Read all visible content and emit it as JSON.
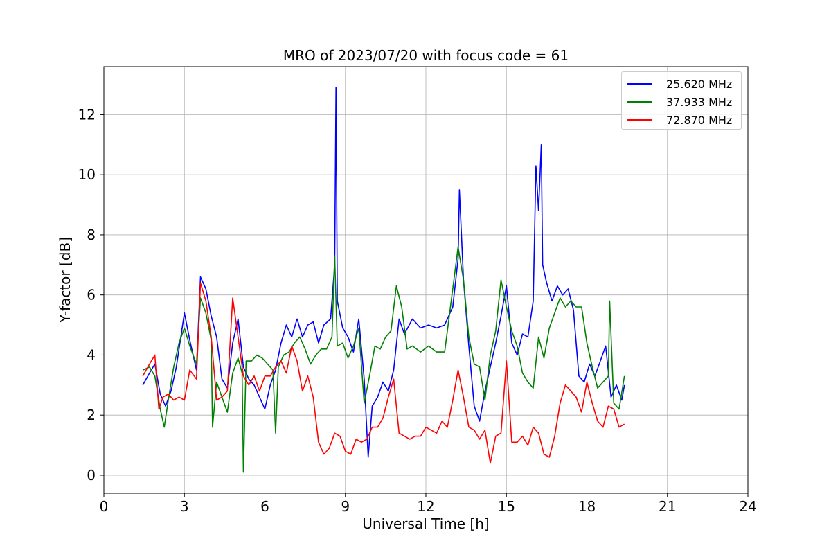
{
  "chart_data": {
    "type": "line",
    "title": "MRO of 2023/07/20 with focus code = 61",
    "xlabel": "Universal Time [h]",
    "ylabel": "Y-factor [dB]",
    "xlim": [
      0,
      24
    ],
    "ylim": [
      -0.6,
      13.6
    ],
    "xticks": [
      0,
      3,
      6,
      9,
      12,
      15,
      18,
      21,
      24
    ],
    "yticks": [
      0,
      2,
      4,
      6,
      8,
      10,
      12
    ],
    "grid": true,
    "legend_position": "top-right",
    "series": [
      {
        "name": "25.620 MHz",
        "color": "#0000ff",
        "x": [
          1.45,
          1.7,
          1.9,
          2.1,
          2.3,
          2.5,
          2.7,
          2.9,
          3.0,
          3.2,
          3.45,
          3.6,
          3.8,
          4.0,
          4.2,
          4.4,
          4.6,
          4.8,
          5.0,
          5.2,
          5.4,
          5.6,
          5.8,
          6.0,
          6.2,
          6.4,
          6.6,
          6.8,
          7.0,
          7.2,
          7.4,
          7.6,
          7.8,
          8.0,
          8.2,
          8.45,
          8.6,
          8.65,
          8.7,
          8.9,
          9.1,
          9.3,
          9.5,
          9.7,
          9.85,
          10.0,
          10.2,
          10.4,
          10.6,
          10.8,
          11.0,
          11.2,
          11.5,
          11.8,
          12.1,
          12.4,
          12.7,
          13.0,
          13.2,
          13.25,
          13.4,
          13.6,
          13.8,
          14.0,
          14.2,
          14.4,
          14.6,
          14.8,
          15.0,
          15.2,
          15.4,
          15.6,
          15.8,
          16.0,
          16.1,
          16.2,
          16.3,
          16.35,
          16.5,
          16.7,
          16.9,
          17.1,
          17.3,
          17.5,
          17.7,
          17.9,
          18.1,
          18.3,
          18.5,
          18.7,
          18.9,
          19.1,
          19.3,
          19.4
        ],
        "y": [
          3.0,
          3.4,
          3.7,
          2.7,
          2.3,
          2.8,
          3.6,
          4.8,
          5.4,
          4.5,
          3.5,
          6.6,
          6.2,
          5.3,
          4.6,
          3.2,
          2.9,
          4.4,
          5.2,
          3.6,
          3.2,
          3.0,
          2.6,
          2.2,
          3.0,
          3.5,
          4.4,
          5.0,
          4.6,
          5.2,
          4.6,
          5.0,
          5.1,
          4.4,
          5.0,
          5.2,
          7.0,
          12.9,
          5.8,
          4.9,
          4.6,
          4.1,
          5.2,
          3.2,
          0.6,
          2.3,
          2.6,
          3.1,
          2.8,
          3.5,
          5.2,
          4.7,
          5.2,
          4.9,
          5.0,
          4.9,
          5.0,
          5.6,
          7.2,
          9.5,
          6.5,
          4.3,
          2.3,
          1.8,
          2.8,
          3.6,
          4.4,
          5.3,
          6.3,
          4.4,
          4.0,
          4.7,
          4.6,
          5.8,
          10.3,
          8.8,
          11.0,
          7.0,
          6.4,
          5.8,
          6.3,
          6.0,
          6.2,
          5.5,
          3.3,
          3.1,
          3.7,
          3.3,
          3.8,
          4.3,
          2.6,
          3.0,
          2.5,
          3.0
        ]
      },
      {
        "name": "37.933 MHz",
        "color": "#008000",
        "x": [
          1.45,
          1.7,
          1.9,
          2.1,
          2.25,
          2.4,
          2.6,
          2.8,
          3.0,
          3.2,
          3.45,
          3.6,
          3.8,
          4.0,
          4.05,
          4.2,
          4.4,
          4.6,
          4.8,
          5.0,
          5.15,
          5.2,
          5.3,
          5.5,
          5.7,
          5.9,
          6.1,
          6.3,
          6.4,
          6.5,
          6.7,
          6.9,
          7.1,
          7.3,
          7.5,
          7.7,
          7.9,
          8.1,
          8.3,
          8.5,
          8.6,
          8.7,
          8.9,
          9.1,
          9.3,
          9.5,
          9.7,
          9.9,
          10.1,
          10.3,
          10.5,
          10.7,
          10.9,
          11.1,
          11.3,
          11.5,
          11.8,
          12.1,
          12.4,
          12.7,
          13.0,
          13.2,
          13.4,
          13.6,
          13.8,
          14.0,
          14.2,
          14.4,
          14.6,
          14.8,
          15.0,
          15.2,
          15.4,
          15.6,
          15.8,
          16.0,
          16.2,
          16.4,
          16.6,
          16.8,
          17.0,
          17.2,
          17.4,
          17.6,
          17.8,
          18.0,
          18.2,
          18.4,
          18.6,
          18.8,
          18.85,
          19.0,
          19.2,
          19.4
        ],
        "y": [
          3.5,
          3.6,
          3.3,
          2.2,
          1.6,
          2.5,
          3.6,
          4.4,
          4.9,
          4.3,
          3.7,
          5.9,
          5.4,
          4.5,
          1.6,
          3.1,
          2.6,
          2.1,
          3.4,
          3.9,
          3.4,
          0.1,
          3.8,
          3.8,
          4.0,
          3.9,
          3.7,
          3.5,
          1.4,
          3.6,
          4.0,
          4.1,
          4.4,
          4.6,
          4.2,
          3.7,
          4.0,
          4.2,
          4.2,
          4.6,
          7.3,
          4.3,
          4.4,
          3.9,
          4.3,
          4.9,
          2.4,
          3.3,
          4.3,
          4.2,
          4.6,
          4.8,
          6.3,
          5.6,
          4.2,
          4.3,
          4.1,
          4.3,
          4.1,
          4.1,
          6.2,
          7.6,
          6.5,
          4.6,
          3.7,
          3.6,
          2.5,
          4.0,
          4.8,
          6.5,
          5.6,
          4.8,
          4.3,
          3.4,
          3.1,
          2.9,
          4.6,
          3.9,
          4.9,
          5.4,
          5.9,
          5.6,
          5.8,
          5.6,
          5.6,
          4.4,
          3.6,
          2.9,
          3.1,
          3.3,
          5.8,
          2.4,
          2.2,
          3.3
        ]
      },
      {
        "name": "72.870 MHz",
        "color": "#ff0000",
        "x": [
          1.45,
          1.7,
          1.9,
          2.05,
          2.2,
          2.4,
          2.6,
          2.8,
          3.0,
          3.2,
          3.45,
          3.6,
          3.8,
          4.0,
          4.2,
          4.4,
          4.6,
          4.8,
          5.0,
          5.2,
          5.4,
          5.6,
          5.8,
          6.0,
          6.2,
          6.4,
          6.6,
          6.8,
          7.0,
          7.2,
          7.4,
          7.6,
          7.8,
          8.0,
          8.2,
          8.4,
          8.6,
          8.8,
          9.0,
          9.2,
          9.4,
          9.6,
          9.8,
          10.0,
          10.2,
          10.4,
          10.6,
          10.8,
          11.0,
          11.2,
          11.4,
          11.6,
          11.8,
          12.0,
          12.2,
          12.4,
          12.6,
          12.8,
          13.0,
          13.2,
          13.4,
          13.6,
          13.8,
          14.0,
          14.2,
          14.4,
          14.6,
          14.8,
          15.0,
          15.2,
          15.4,
          15.6,
          15.8,
          16.0,
          16.2,
          16.4,
          16.6,
          16.8,
          17.0,
          17.2,
          17.4,
          17.6,
          17.8,
          18.0,
          18.2,
          18.4,
          18.6,
          18.8,
          19.0,
          19.2,
          19.4
        ],
        "y": [
          3.3,
          3.7,
          4.0,
          2.2,
          2.6,
          2.7,
          2.5,
          2.6,
          2.5,
          3.5,
          3.2,
          6.4,
          5.8,
          4.6,
          2.5,
          2.6,
          2.8,
          5.9,
          4.6,
          3.3,
          3.0,
          3.3,
          2.8,
          3.3,
          3.3,
          3.6,
          3.8,
          3.4,
          4.3,
          3.8,
          2.8,
          3.3,
          2.6,
          1.1,
          0.7,
          0.9,
          1.4,
          1.3,
          0.8,
          0.7,
          1.2,
          1.1,
          1.2,
          1.6,
          1.6,
          1.9,
          2.6,
          3.2,
          1.4,
          1.3,
          1.2,
          1.3,
          1.3,
          1.6,
          1.5,
          1.4,
          1.8,
          1.6,
          2.5,
          3.5,
          2.6,
          1.6,
          1.5,
          1.2,
          1.5,
          0.4,
          1.3,
          1.4,
          3.8,
          1.1,
          1.1,
          1.3,
          1.0,
          1.6,
          1.4,
          0.7,
          0.6,
          1.3,
          2.4,
          3.0,
          2.8,
          2.6,
          2.1,
          3.1,
          2.4,
          1.8,
          1.6,
          2.3,
          2.2,
          1.6,
          1.7
        ]
      }
    ]
  }
}
